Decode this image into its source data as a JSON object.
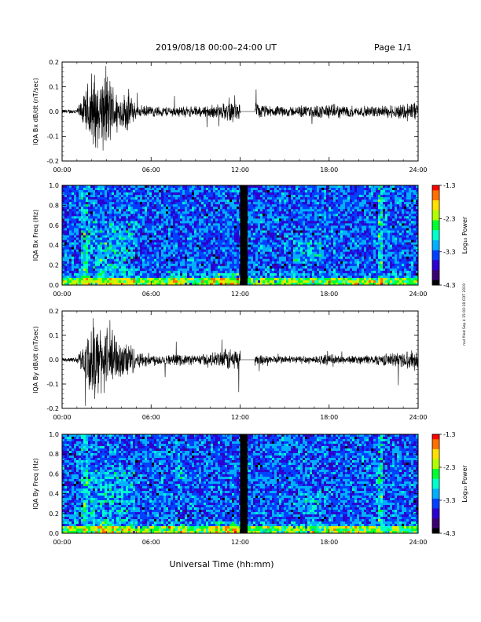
{
  "header": {
    "title": "2019/08/18   00:00–24:00 UT",
    "page": "Page 1/1"
  },
  "xlabel": "Universal Time (hh:mm)",
  "side_note": "mxl filed Sep 4 15:00:18 CDT 2019",
  "colorbar": {
    "label": "Log₁₀ Power",
    "ticks": [
      "-1.3",
      "-2.3",
      "-3.3",
      "-4.3"
    ],
    "range": [
      -4.3,
      -1.3
    ],
    "colors": [
      "#000000",
      "#3a0072",
      "#2b00d0",
      "#0040ff",
      "#00b0ff",
      "#00ffcc",
      "#00ff30",
      "#b0ff00",
      "#ffe000",
      "#ff7000",
      "#ff0000"
    ]
  },
  "chart_data": [
    {
      "type": "line",
      "ylabel": "IQA Bx dB/dt (nT/sec)",
      "xlim": [
        0,
        24
      ],
      "ylim": [
        -0.2,
        0.2
      ],
      "x_ticks": [
        "00:00",
        "06:00",
        "12:00",
        "18:00",
        "24:00"
      ],
      "y_ticks": [
        "0.2",
        "0.1",
        "0.0",
        "-0.1",
        "-0.2"
      ],
      "data_gap_hours": [
        12.0,
        13.0
      ],
      "amplitude_envelope": {
        "hours": [
          0,
          0.5,
          1,
          1.5,
          2,
          2.5,
          3,
          3.5,
          4,
          4.5,
          5,
          6,
          7,
          8,
          9,
          10,
          11,
          11.5,
          12,
          13,
          14,
          15,
          16,
          17,
          18,
          19,
          20,
          21,
          22,
          23,
          24
        ],
        "amplitude": [
          0.01,
          0.01,
          0.015,
          0.08,
          0.2,
          0.15,
          0.2,
          0.12,
          0.08,
          0.1,
          0.03,
          0.025,
          0.025,
          0.025,
          0.025,
          0.03,
          0.04,
          0.05,
          0.04,
          0.04,
          0.025,
          0.025,
          0.025,
          0.03,
          0.035,
          0.03,
          0.025,
          0.025,
          0.03,
          0.04,
          0.06
        ]
      }
    },
    {
      "type": "heatmap",
      "ylabel": "IQA Bx Freq (Hz)",
      "xlim": [
        0,
        24
      ],
      "ylim": [
        0,
        1.0
      ],
      "x_ticks": [
        "00:00",
        "06:00",
        "12:00",
        "18:00",
        "24:00"
      ],
      "y_ticks": [
        "1.0",
        "0.8",
        "0.6",
        "0.4",
        "0.2",
        "0.0"
      ],
      "data_gap_hours": [
        12.0,
        12.5
      ]
    },
    {
      "type": "line",
      "ylabel": "IQA By dB/dt (nT/sec)",
      "xlim": [
        0,
        24
      ],
      "ylim": [
        -0.2,
        0.2
      ],
      "x_ticks": [
        "00:00",
        "06:00",
        "12:00",
        "18:00",
        "24:00"
      ],
      "y_ticks": [
        "0.2",
        "0.1",
        "0.0",
        "-0.1",
        "-0.2"
      ],
      "data_gap_hours": [
        12.0,
        13.0
      ],
      "amplitude_envelope": {
        "hours": [
          0,
          0.5,
          1,
          1.5,
          2,
          2.5,
          3,
          3.5,
          4,
          4.5,
          5,
          6,
          7,
          8,
          9,
          10,
          11,
          11.5,
          12,
          13,
          14,
          15,
          16,
          17,
          18,
          19,
          20,
          21,
          22,
          23,
          24
        ],
        "amplitude": [
          0.01,
          0.01,
          0.015,
          0.08,
          0.2,
          0.15,
          0.2,
          0.15,
          0.08,
          0.1,
          0.04,
          0.03,
          0.025,
          0.025,
          0.025,
          0.03,
          0.05,
          0.06,
          0.05,
          0.03,
          0.02,
          0.02,
          0.02,
          0.02,
          0.025,
          0.02,
          0.02,
          0.025,
          0.03,
          0.04,
          0.05
        ]
      }
    },
    {
      "type": "heatmap",
      "ylabel": "IQA By Freq (Hz)",
      "xlim": [
        0,
        24
      ],
      "ylim": [
        0,
        1.0
      ],
      "x_ticks": [
        "00:00",
        "06:00",
        "12:00",
        "18:00",
        "24:00"
      ],
      "y_ticks": [
        "1.0",
        "0.8",
        "0.6",
        "0.4",
        "0.2",
        "0.0"
      ],
      "data_gap_hours": [
        12.0,
        12.5
      ]
    }
  ]
}
